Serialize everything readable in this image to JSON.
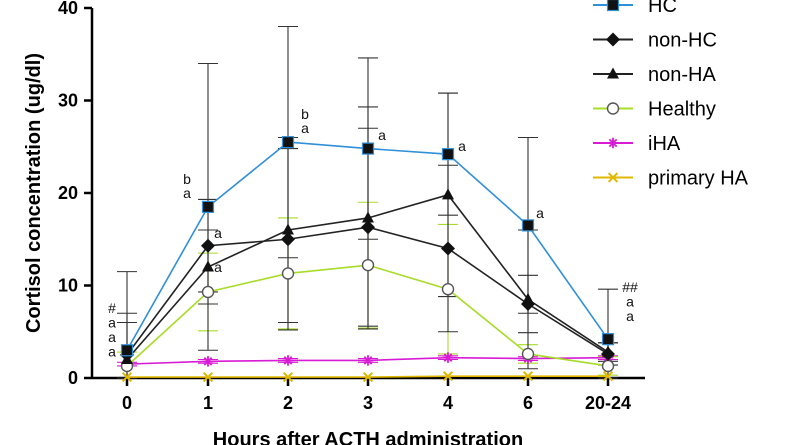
{
  "chart_data": {
    "type": "line",
    "title": "",
    "xlabel": "Hours after ACTH administration",
    "ylabel": "Cortisol concentration (ug/dl)",
    "categories": [
      "0",
      "1",
      "2",
      "3",
      "4",
      "6",
      "20-24"
    ],
    "ylim": [
      0,
      40
    ],
    "yticks": [
      0,
      10,
      20,
      30,
      40
    ],
    "grid": false,
    "legend_position": "top-right",
    "series": [
      {
        "name": "HC",
        "marker": "square",
        "color": "#2f8fd8",
        "values": [
          3.0,
          18.5,
          25.5,
          24.8,
          24.2,
          16.5,
          4.2
        ],
        "error": [
          8.5,
          15.5,
          12.5,
          9.8,
          6.6,
          9.5,
          5.4
        ]
      },
      {
        "name": "non-HC",
        "marker": "diamond",
        "color": "#222222",
        "values": [
          2.5,
          14.3,
          15.0,
          16.3,
          14.0,
          8.0,
          2.6
        ],
        "error": [
          4.5,
          5.0,
          9.8,
          10.7,
          9.0,
          3.1,
          1.2
        ]
      },
      {
        "name": "non-HA",
        "marker": "triangle",
        "color": "#222222",
        "values": [
          2.0,
          12.0,
          16.0,
          17.3,
          19.8,
          8.5,
          2.8
        ],
        "error": [
          4.0,
          4.0,
          10.0,
          12.0,
          11.0,
          7.5,
          1.0
        ]
      },
      {
        "name": "Healthy",
        "marker": "circle-open",
        "color": "#a8dc28",
        "values": [
          1.3,
          9.3,
          11.3,
          12.2,
          9.6,
          2.6,
          1.3
        ],
        "error": [
          1.5,
          4.2,
          6.0,
          6.8,
          7.0,
          1.0,
          1.0
        ]
      },
      {
        "name": "iHA",
        "marker": "asterisk",
        "color": "#d81bd4",
        "values": [
          1.5,
          1.8,
          1.9,
          1.9,
          2.2,
          2.1,
          2.2
        ],
        "error": [
          0.2,
          0.2,
          0.2,
          0.2,
          0.2,
          0.2,
          0.2
        ]
      },
      {
        "name": "primary HA",
        "marker": "cross",
        "color": "#e0b800",
        "values": [
          0.1,
          0.1,
          0.1,
          0.1,
          0.2,
          0.2,
          0.2
        ],
        "error": [
          0,
          0,
          0,
          0,
          0,
          0,
          0
        ]
      }
    ],
    "annotations": [
      {
        "x_index": 0,
        "lines": [
          "#",
          "a",
          "a",
          "a"
        ]
      },
      {
        "x_index": 1,
        "lines": [
          "b",
          "a"
        ],
        "position": "upper"
      },
      {
        "x_index": 1,
        "lines": [
          "a"
        ],
        "position": "lower1"
      },
      {
        "x_index": 1,
        "lines": [
          "a"
        ],
        "position": "lower2"
      },
      {
        "x_index": 2,
        "lines": [
          "b",
          "a"
        ]
      },
      {
        "x_index": 3,
        "lines": [
          "a"
        ]
      },
      {
        "x_index": 4,
        "lines": [
          "a"
        ]
      },
      {
        "x_index": 5,
        "lines": [
          "a"
        ]
      },
      {
        "x_index": 6,
        "lines": [
          "##",
          "a",
          "a"
        ]
      }
    ]
  }
}
